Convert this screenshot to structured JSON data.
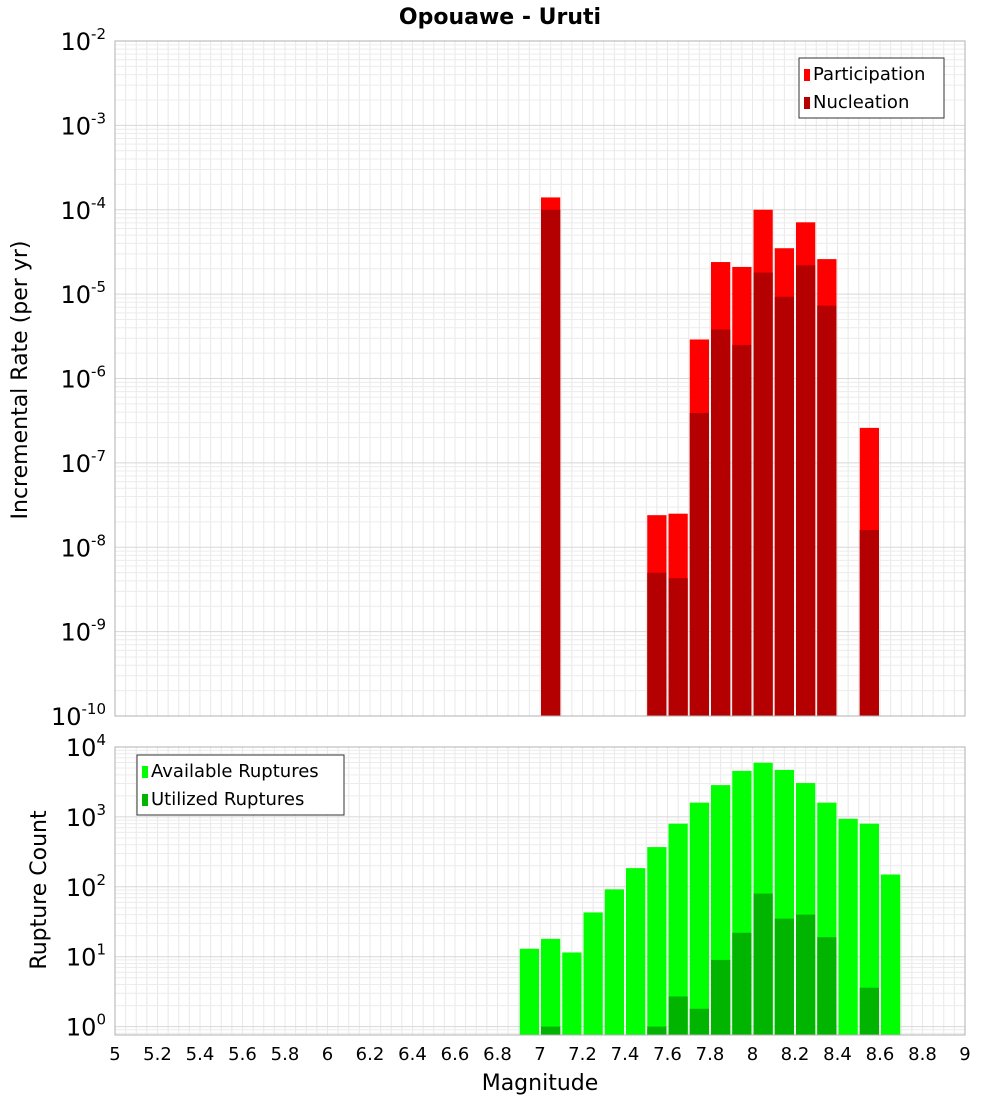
{
  "chart_data": {
    "type": "bar",
    "title": "Opouawe - Uruti",
    "x_axis": {
      "label": "Magnitude",
      "range": [
        5,
        9
      ],
      "tick_labels": [
        "5",
        "5.2",
        "5.4",
        "5.6",
        "5.8",
        "6",
        "6.2",
        "6.4",
        "6.6",
        "6.8",
        "7",
        "7.2",
        "7.4",
        "7.6",
        "7.8",
        "8",
        "8.2",
        "8.4",
        "8.6",
        "8.8",
        "9"
      ]
    },
    "panels": [
      {
        "name": "rate",
        "ylabel": "Incremental Rate (per yr)",
        "yscale": "log",
        "ylim_exponents": [
          -10,
          -2
        ],
        "tick_bases": [
          "10",
          "10",
          "10",
          "10",
          "10",
          "10",
          "10",
          "10",
          "10"
        ],
        "tick_exponents": [
          "-2",
          "-3",
          "-4",
          "-5",
          "-6",
          "-7",
          "-8",
          "-9",
          "-10"
        ],
        "grid": true,
        "legend_position": "top-right",
        "series": [
          {
            "name": "Participation",
            "color": "#ff0000",
            "x": [
              7.05,
              7.55,
              7.65,
              7.75,
              7.85,
              7.95,
              8.05,
              8.15,
              8.25,
              8.35,
              8.55
            ],
            "values": [
              0.00014,
              2.4e-08,
              2.5e-08,
              2.9e-06,
              2.4e-05,
              2.1e-05,
              0.0001,
              3.5e-05,
              7.1e-05,
              2.6e-05,
              2.6e-07
            ]
          },
          {
            "name": "Nucleation",
            "color": "#b40000",
            "x": [
              7.05,
              7.55,
              7.65,
              7.75,
              7.85,
              7.95,
              8.05,
              8.15,
              8.25,
              8.35,
              8.55
            ],
            "values": [
              0.0001,
              5e-09,
              4.3e-09,
              3.9e-07,
              3.8e-06,
              2.5e-06,
              1.8e-05,
              9.3e-06,
              2.2e-05,
              7.3e-06,
              1.6e-08
            ]
          }
        ]
      },
      {
        "name": "count",
        "ylabel": "Rupture Count",
        "yscale": "log",
        "ylim_exponents": [
          -0.12,
          4
        ],
        "tick_bases": [
          "10",
          "10",
          "10",
          "10",
          "10"
        ],
        "tick_exponents": [
          "4",
          "3",
          "2",
          "1",
          "0"
        ],
        "grid": true,
        "legend_position": "top-left",
        "series": [
          {
            "name": "Available Ruptures",
            "color": "#00ff00",
            "x": [
              6.95,
              7.05,
              7.15,
              7.25,
              7.35,
              7.45,
              7.55,
              7.65,
              7.75,
              7.85,
              7.95,
              8.05,
              8.15,
              8.25,
              8.35,
              8.45,
              8.55,
              8.65
            ],
            "values": [
              13,
              18,
              11.5,
              43,
              92,
              185,
              370,
              800,
              1600,
              2850,
              4550,
              5950,
              4700,
              3050,
              1600,
              940,
              800,
              150
            ]
          },
          {
            "name": "Utilized Ruptures",
            "color": "#00b400",
            "x": [
              7.05,
              7.55,
              7.65,
              7.75,
              7.85,
              7.95,
              8.05,
              8.15,
              8.25,
              8.35,
              8.55
            ],
            "values": [
              1,
              1,
              2.7,
              1.8,
              9,
              22,
              80,
              35,
              40,
              19,
              3.6
            ]
          }
        ]
      }
    ]
  }
}
